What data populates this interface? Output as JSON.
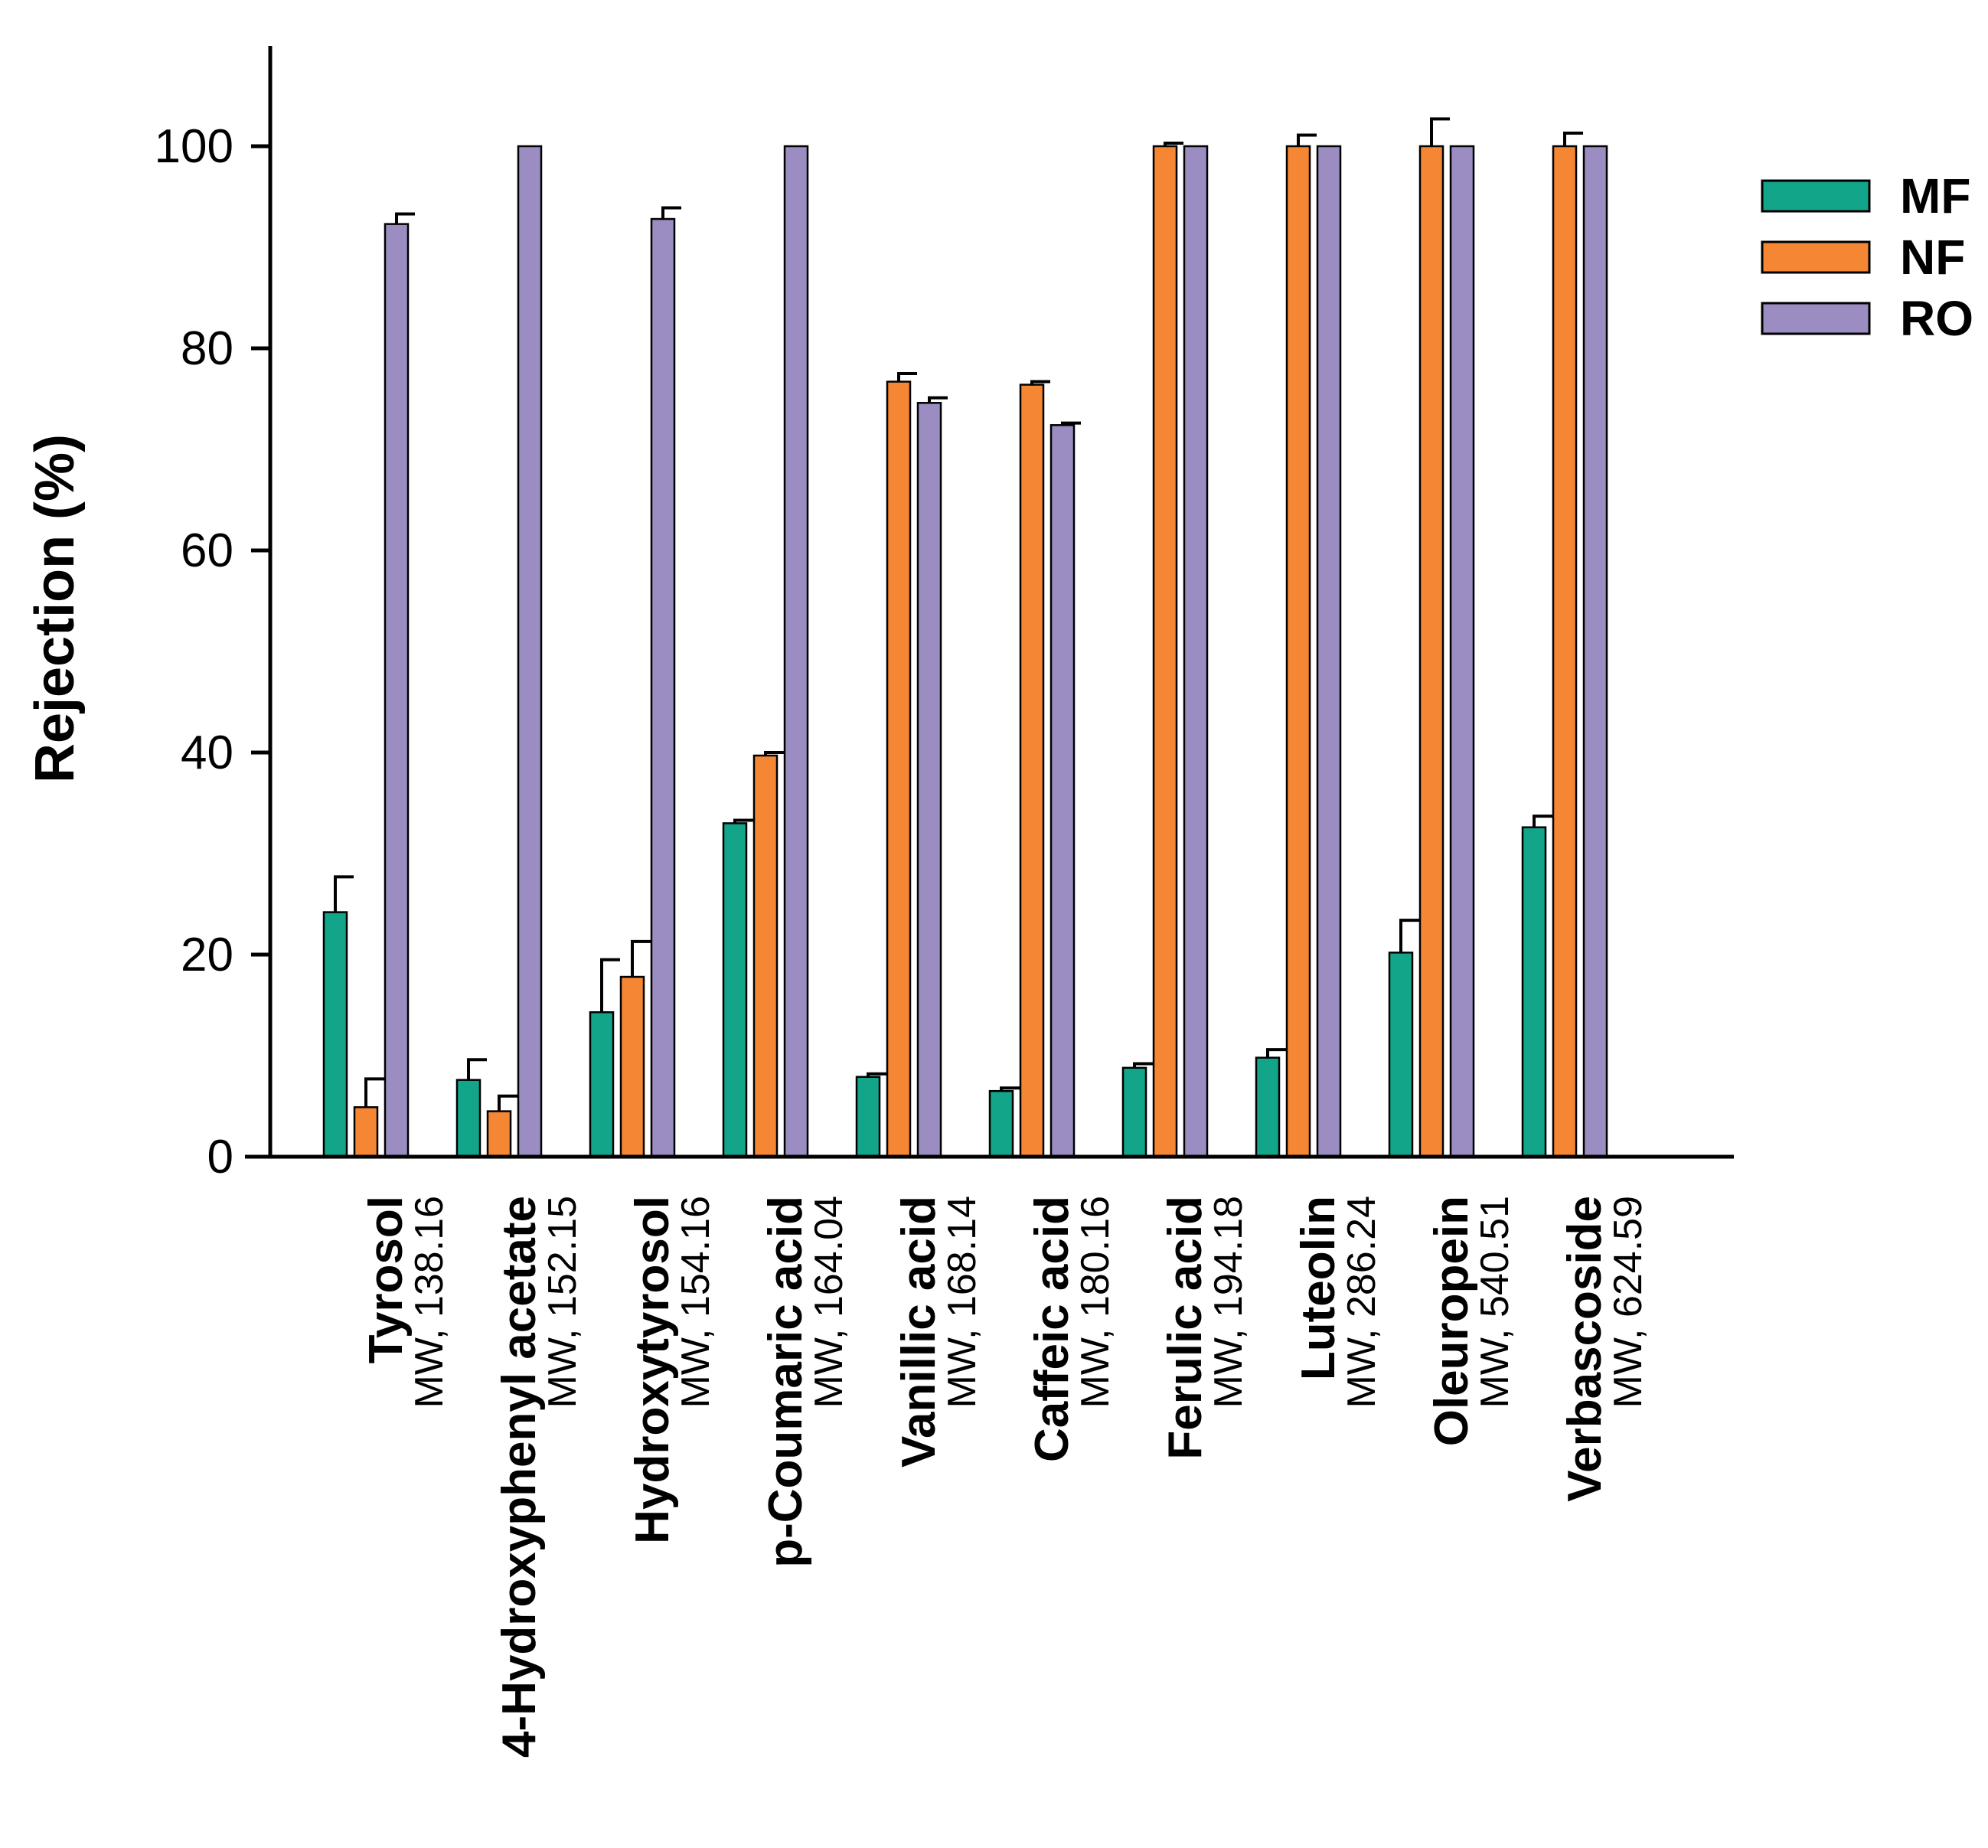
{
  "chart_data": {
    "type": "bar",
    "title": "",
    "xlabel": "",
    "ylabel": "Rejection (%)",
    "ylim": [
      0,
      110
    ],
    "yticks": [
      0,
      20,
      40,
      60,
      80,
      100
    ],
    "grid": false,
    "legend_position": "right-top",
    "categories": [
      {
        "name": "Tyrosol",
        "mw": "MW, 138.16"
      },
      {
        "name": "4-Hydroxyphenyl acetate",
        "mw": "MW, 152.15"
      },
      {
        "name": "Hydroxytyrosol",
        "mw": "MW, 154.16"
      },
      {
        "name": "p-Coumaric acid",
        "mw": "MW, 164.04"
      },
      {
        "name": "Vanillic acid",
        "mw": "MW, 168.14"
      },
      {
        "name": "Caffeic acid",
        "mw": "MW, 180.16"
      },
      {
        "name": "Ferulic acid",
        "mw": "MW, 194.18"
      },
      {
        "name": "Luteolin",
        "mw": "MW, 286.24"
      },
      {
        "name": "Oleuropein",
        "mw": "MW, 540.51"
      },
      {
        "name": "Verbascoside",
        "mw": "MW, 624.59"
      }
    ],
    "series": [
      {
        "name": "MF",
        "color": "#13A58A",
        "values": [
          24.2,
          7.6,
          14.3,
          33.0,
          7.9,
          6.5,
          8.8,
          9.8,
          20.2,
          32.6
        ],
        "errors": [
          3.5,
          2.0,
          5.2,
          0.3,
          0.3,
          0.3,
          0.4,
          0.8,
          3.2,
          1.1
        ]
      },
      {
        "name": "NF",
        "color": "#F58634",
        "values": [
          4.9,
          4.5,
          17.8,
          39.7,
          76.7,
          76.4,
          100.0,
          100.0,
          100.0,
          100.0
        ],
        "errors": [
          2.8,
          1.5,
          3.5,
          0.3,
          0.8,
          0.3,
          0.3,
          1.1,
          2.7,
          1.3
        ]
      },
      {
        "name": "RO",
        "color": "#9B8DC2",
        "values": [
          92.3,
          100.0,
          92.8,
          100.0,
          74.6,
          72.4,
          100.0,
          100.0,
          100.0,
          100.0
        ],
        "errors": [
          1.0,
          0.0,
          1.1,
          0.0,
          0.5,
          0.2,
          0.0,
          0.0,
          0.0,
          0.0
        ]
      }
    ]
  }
}
